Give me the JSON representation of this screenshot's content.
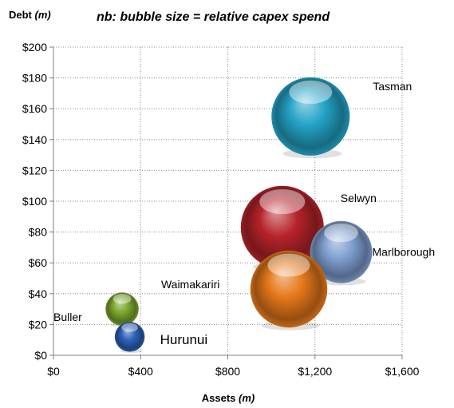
{
  "chart_data": {
    "type": "bubble",
    "title_lines": [
      {
        "text": "",
        "style": "bold"
      },
      {
        "text": "nb: bubble size = relative capex spend",
        "style": "bold-italic"
      }
    ],
    "ylabel": {
      "prefix": "Debt ",
      "unit": "(m)"
    },
    "xlabel": {
      "prefix": "Assets ",
      "unit": "(m)"
    },
    "xlim": [
      0,
      1600
    ],
    "ylim": [
      0,
      200
    ],
    "x_ticks": [
      "$0",
      "$400",
      "$800",
      "$1,200",
      "$1,600"
    ],
    "x_tick_values": [
      0,
      400,
      800,
      1200,
      1600
    ],
    "y_ticks": [
      "$0",
      "$20",
      "$40",
      "$60",
      "$80",
      "$100",
      "$120",
      "$140",
      "$160",
      "$180",
      "$200"
    ],
    "y_tick_values": [
      0,
      20,
      40,
      60,
      80,
      100,
      120,
      140,
      160,
      180,
      200
    ],
    "grid": "dotted",
    "points": [
      {
        "label": "Tasman",
        "x": 1180,
        "y": 155,
        "size": 0.89,
        "color": "#23a3c6"
      },
      {
        "label": "Selwyn",
        "x": 1050,
        "y": 83,
        "size": 1.0,
        "color": "#b6232a"
      },
      {
        "label": "Marlborough",
        "x": 1320,
        "y": 67,
        "size": 0.56,
        "color": "#7f9fd0"
      },
      {
        "label": "Waimakariri",
        "x": 1080,
        "y": 43,
        "size": 0.86,
        "color": "#e5781a"
      },
      {
        "label": "Buller",
        "x": 315,
        "y": 30,
        "size": 0.16,
        "color": "#7da72d"
      },
      {
        "label": "Hurunui",
        "x": 350,
        "y": 12,
        "size": 0.13,
        "color": "#2e62b8"
      }
    ]
  }
}
